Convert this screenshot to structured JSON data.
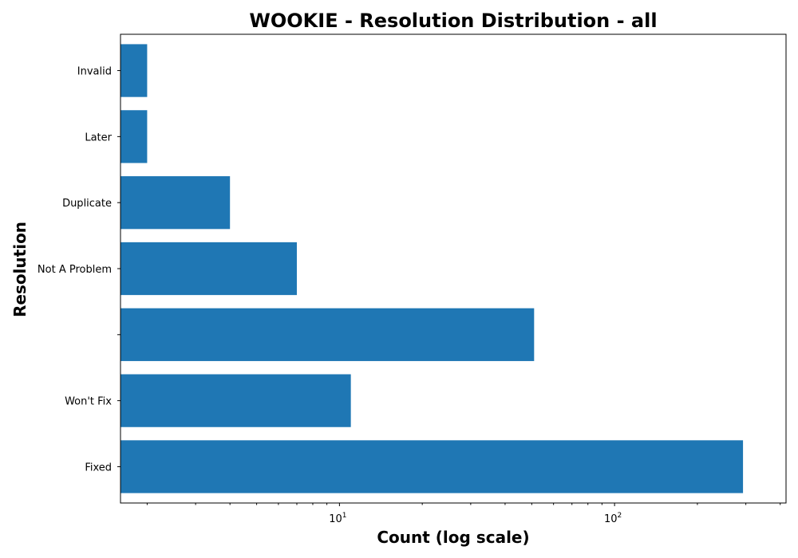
{
  "chart_data": {
    "type": "bar",
    "orientation": "horizontal",
    "title": "WOOKIE - Resolution Distribution - all",
    "xlabel": "Count (log scale)",
    "ylabel": "Resolution",
    "x_scale": "log",
    "xlim": [
      1.6,
      420
    ],
    "x_ticks": [
      {
        "value": 10,
        "base": "10",
        "exp": "1"
      },
      {
        "value": 100,
        "base": "10",
        "exp": "2"
      }
    ],
    "categories": [
      "Fixed",
      "Won't Fix",
      "",
      "Not A Problem",
      "Duplicate",
      "Later",
      "Invalid"
    ],
    "values": [
      293,
      11,
      51,
      7,
      4,
      2,
      2
    ],
    "bar_color": "#1f77b4",
    "grid": false,
    "legend": "none"
  }
}
